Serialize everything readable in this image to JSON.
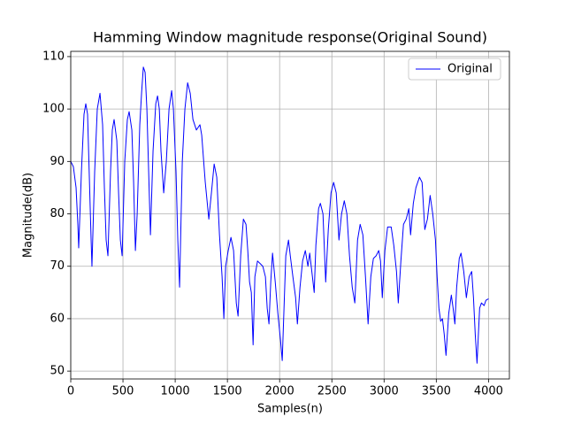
{
  "chart_data": {
    "type": "line",
    "title": "Hamming Window magnitude response(Original Sound)",
    "x_label": "Samples(n)",
    "y_label": "Magnitude(dB)",
    "x": [
      0,
      25,
      51,
      68,
      76,
      102,
      127,
      144,
      161,
      178,
      195,
      203,
      229,
      254,
      280,
      305,
      322,
      339,
      356,
      381,
      398,
      415,
      441,
      458,
      475,
      492,
      517,
      542,
      559,
      585,
      602,
      619,
      636,
      661,
      678,
      695,
      712,
      729,
      746,
      763,
      788,
      814,
      831,
      848,
      864,
      890,
      915,
      941,
      966,
      983,
      1008,
      1025,
      1042,
      1068,
      1093,
      1119,
      1144,
      1170,
      1203,
      1237,
      1254,
      1288,
      1322,
      1347,
      1373,
      1398,
      1424,
      1449,
      1466,
      1483,
      1508,
      1534,
      1559,
      1585,
      1602,
      1627,
      1653,
      1678,
      1695,
      1712,
      1729,
      1746,
      1763,
      1788,
      1814,
      1839,
      1864,
      1881,
      1898,
      1915,
      1932,
      1958,
      1983,
      2008,
      2025,
      2042,
      2059,
      2085,
      2102,
      2127,
      2153,
      2170,
      2195,
      2220,
      2246,
      2271,
      2288,
      2314,
      2331,
      2347,
      2373,
      2390,
      2415,
      2441,
      2466,
      2492,
      2517,
      2542,
      2568,
      2593,
      2619,
      2644,
      2669,
      2695,
      2720,
      2746,
      2771,
      2797,
      2822,
      2847,
      2873,
      2898,
      2924,
      2949,
      2966,
      2983,
      3008,
      3034,
      3068,
      3093,
      3119,
      3136,
      3161,
      3186,
      3212,
      3237,
      3254,
      3280,
      3305,
      3339,
      3364,
      3390,
      3415,
      3441,
      3466,
      3492,
      3508,
      3525,
      3542,
      3559,
      3576,
      3593,
      3619,
      3644,
      3661,
      3678,
      3695,
      3720,
      3737,
      3763,
      3788,
      3814,
      3839,
      3856,
      3873,
      3890,
      3915,
      3932,
      3958,
      3975,
      4000
    ],
    "series": [
      {
        "name": "Original",
        "color": "#0000ff",
        "values": [
          90,
          89,
          85,
          78,
          73.5,
          88,
          99,
          101,
          99,
          87,
          75,
          70,
          88,
          100,
          103,
          97,
          85,
          75,
          72,
          88,
          96,
          98,
          94,
          84,
          75,
          72,
          90,
          98,
          99.5,
          96,
          86,
          73,
          80,
          97,
          103,
          108,
          107,
          100,
          88,
          76,
          92,
          101,
          102.5,
          100,
          92,
          84,
          90,
          100,
          103.5,
          100,
          88,
          75,
          66,
          90,
          100,
          105,
          103,
          98,
          96,
          97,
          95,
          86,
          79,
          84,
          89.5,
          87,
          76,
          68,
          60,
          70,
          73,
          75.5,
          73,
          63,
          60.5,
          72,
          79,
          78,
          73,
          67,
          65,
          55,
          68,
          71,
          70.5,
          70,
          68,
          62,
          59,
          67,
          72.5,
          67,
          61,
          56,
          52,
          62,
          72,
          75,
          72,
          68,
          64,
          59,
          66,
          71,
          73,
          70,
          72.5,
          68,
          65,
          74,
          81,
          82,
          80,
          67,
          77,
          84,
          86,
          84,
          75,
          80,
          82.5,
          80,
          72,
          66,
          63,
          75,
          78,
          76,
          68,
          59,
          68,
          71.5,
          72,
          73,
          71,
          64,
          73,
          77.5,
          77.5,
          74,
          69,
          63,
          71,
          78,
          79,
          81,
          76,
          82,
          85,
          87,
          86,
          77,
          79,
          83.5,
          80,
          75,
          68,
          62,
          59.5,
          60,
          57,
          53,
          61,
          64.5,
          62,
          59,
          66,
          71.5,
          72.5,
          69,
          64,
          68,
          69,
          64,
          57,
          51.5,
          62,
          63,
          62.5,
          63.5,
          63.8
        ]
      }
    ],
    "xlim": [
      0,
      4200
    ],
    "ylim": [
      48.5,
      111
    ],
    "xticks": [
      0,
      500,
      1000,
      1500,
      2000,
      2500,
      3000,
      3500,
      4000
    ],
    "yticks": [
      50,
      60,
      70,
      80,
      90,
      100,
      110
    ],
    "grid": true,
    "legend": "upper right"
  }
}
